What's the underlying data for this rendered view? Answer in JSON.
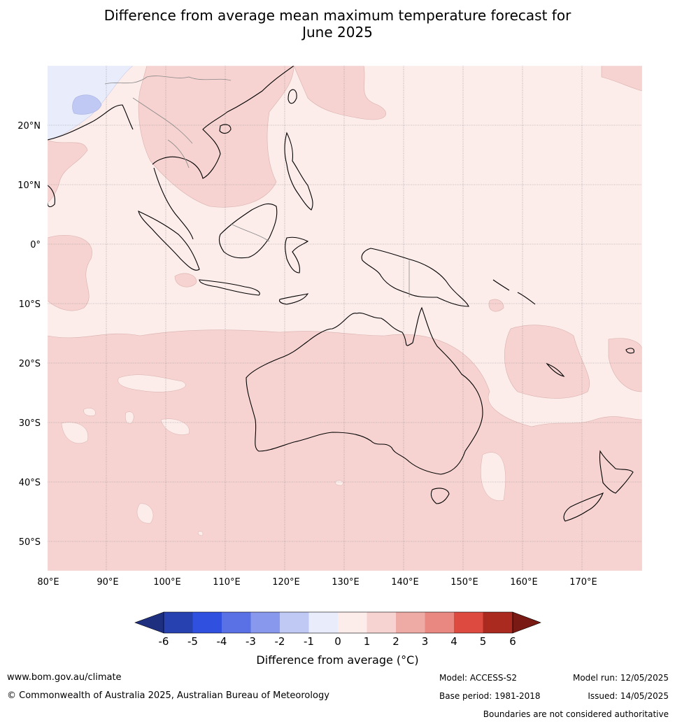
{
  "title": {
    "line1": "Difference from average mean maximum temperature forecast for",
    "line2": "June 2025"
  },
  "map": {
    "lon_labels": [
      "80°E",
      "90°E",
      "100°E",
      "110°E",
      "120°E",
      "130°E",
      "140°E",
      "150°E",
      "160°E",
      "170°E"
    ],
    "lat_labels": [
      "20°N",
      "10°N",
      "0°",
      "10°S",
      "20°S",
      "30°S",
      "40°S",
      "50°S"
    ]
  },
  "colorbar": {
    "ticks": [
      "-6",
      "-5",
      "-4",
      "-3",
      "-2",
      "-1",
      "0",
      "1",
      "2",
      "3",
      "4",
      "5",
      "6"
    ],
    "colors": [
      "#1f2f80",
      "#2841b0",
      "#3050e0",
      "#5a70e5",
      "#8898ec",
      "#c0c8f4",
      "#e8ecfb",
      "#fcecea",
      "#f6d3d1",
      "#eeaaa5",
      "#e88880",
      "#dd4b40",
      "#aa2a20",
      "#7a1a14"
    ],
    "label": "Difference from average (",
    "unit": "°C)"
  },
  "footer": {
    "website": "www.bom.gov.au/climate",
    "copyright": "© Commonwealth of Australia 2025, Australian Bureau of Meteorology",
    "model": "Model: ACCESS-S2",
    "base_period": "Base period: 1981-2018",
    "model_run": "Model run: 12/05/2025",
    "issued": "Issued: 14/05/2025",
    "disclaimer": "Boundaries are not considered authoritative"
  }
}
